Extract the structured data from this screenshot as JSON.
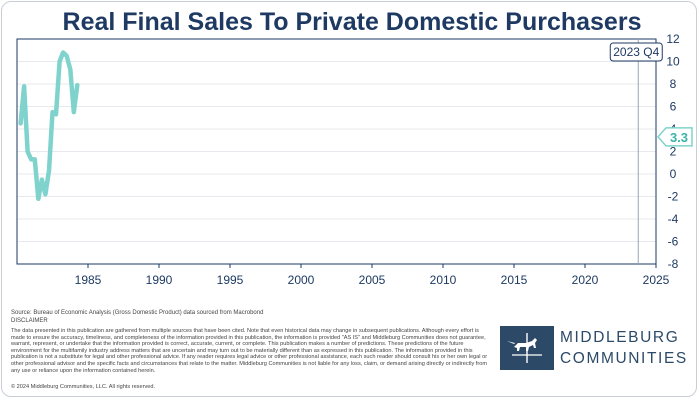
{
  "title": "Real Final Sales To Private Domestic Purchasers",
  "chart_data": {
    "type": "line",
    "title": "Real Final Sales To Private Domestic Purchasers",
    "xlabel": "",
    "ylabel": "",
    "xlim": [
      1980,
      2025
    ],
    "ylim": [
      -8,
      12
    ],
    "x_ticks": [
      "1985",
      "1990",
      "1995",
      "2000",
      "2005",
      "2010",
      "2015",
      "2020",
      "2025"
    ],
    "y_ticks": [
      "12",
      "10",
      "8",
      "6",
      "4",
      "2",
      "0",
      "-2",
      "-4",
      "-6",
      "-8"
    ],
    "grid": "horizontal",
    "series_color": "#7fd3cc",
    "x": [
      1980.25,
      1980.5,
      1980.75,
      1981.0,
      1981.25,
      1981.5,
      1981.75,
      1982.0,
      1982.25,
      1982.5,
      1982.75,
      1983.0,
      1983.25,
      1983.5,
      1983.75,
      1984.0,
      1984.25
    ],
    "values": [
      4.5,
      7.8,
      2.0,
      1.3,
      1.3,
      -2.2,
      -0.5,
      -1.8,
      0.3,
      5.5,
      5.3,
      10.0,
      10.8,
      10.5,
      9.3,
      5.5,
      7.9
    ],
    "period_marker": {
      "label": "2023 Q4",
      "x": 2023.75
    },
    "latest_value_label": "3.3",
    "latest_value": 3.3
  },
  "footer": {
    "source": "Source: Bureau of Economic Analysis (Gross Domestic Product) data sourced from Macrobond",
    "disclaimer_label": "DISCLAIMER",
    "disclaimer_text": "The data presented in this publication are gathered from multiple sources that have been cited. Note that even historical data may change in subsequent publications. Although every effort is made to ensure the accuracy, timeliness, and completeness of the information provided in this publication, the information is provided \"AS IS\" and Middleburg Communities does not guarantee, warrant, represent, or undertake that the information provided is correct, accurate, current, or complete. This publication makes a number of predictions. These predictions of the future environment for the multifamily industry address matters that are uncertain and may turn out to be materially different than as expressed in this publication. The information provided in this publication is not a substitute for legal and other professional advice. If any reader requires legal advice or other professional assistance, each such reader should consult his or her own legal or other professional advisor and the specific facts and circumstances that relate to the matter. Middleburg Communities is not liable for any loss, claim, or demand arising directly or indirectly from any use or reliance upon the information contained herein.",
    "copyright": "© 2024 Middleburg Communities, LLC. All rights reserved."
  },
  "logo": {
    "line1": "MIDDLEBURG",
    "line2": "COMMUNITIES"
  },
  "colors": {
    "title": "#1e3a63",
    "series": "#7fd3cc",
    "logo": "#2c4a68"
  }
}
